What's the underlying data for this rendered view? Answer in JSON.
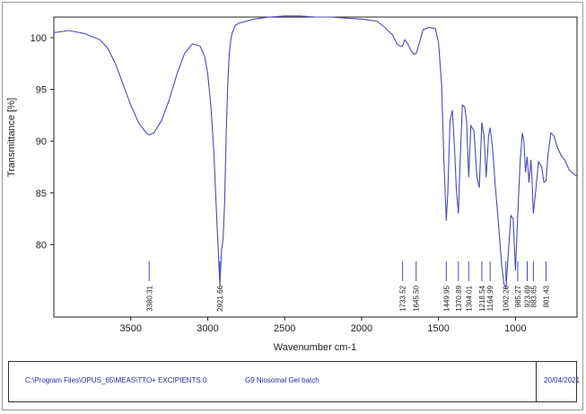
{
  "chart_data": {
    "type": "line",
    "ylabel": "Transmittance [%]",
    "xlabel": "Wavenumber cm-1",
    "xlim": [
      4000,
      600
    ],
    "ylim": [
      73,
      102
    ],
    "x_ticks": [
      "3500",
      "3000",
      "2500",
      "2000",
      "1500",
      "1000"
    ],
    "x_tick_values": [
      3500,
      3000,
      2500,
      2000,
      1500,
      1000
    ],
    "y_ticks": [
      "100",
      "95",
      "90",
      "85",
      "80"
    ],
    "y_tick_values": [
      100,
      95,
      90,
      85,
      80
    ],
    "line_color": "#4b4bb5",
    "series": [
      {
        "x": [
          4000,
          3900,
          3800,
          3700,
          3650,
          3600,
          3550,
          3500,
          3450,
          3400,
          3380,
          3350,
          3300,
          3250,
          3200,
          3150,
          3100,
          3050,
          3020,
          3000,
          2980,
          2960,
          2950,
          2940,
          2930,
          2921,
          2910,
          2900,
          2890,
          2880,
          2870,
          2860,
          2850,
          2840,
          2820,
          2800,
          2700,
          2600,
          2500,
          2400,
          2300,
          2200,
          2100,
          2000,
          1900,
          1850,
          1800,
          1770,
          1750,
          1733,
          1720,
          1700,
          1680,
          1660,
          1645,
          1630,
          1600,
          1560,
          1520,
          1500,
          1480,
          1465,
          1450,
          1440,
          1425,
          1410,
          1395,
          1385,
          1371,
          1360,
          1345,
          1330,
          1318,
          1304,
          1290,
          1270,
          1250,
          1235,
          1219,
          1205,
          1190,
          1175,
          1165,
          1150,
          1130,
          1110,
          1090,
          1075,
          1062,
          1045,
          1030,
          1015,
          1000,
          985,
          970,
          955,
          945,
          935,
          924,
          912,
          900,
          893,
          884,
          870,
          850,
          830,
          815,
          801,
          790,
          770,
          750,
          730,
          700,
          680,
          650,
          620,
          600
        ],
        "y": [
          100.5,
          100.7,
          100.4,
          99.8,
          99.0,
          97.5,
          95.5,
          93.5,
          91.8,
          90.8,
          90.6,
          90.8,
          92.0,
          94.0,
          96.5,
          98.5,
          99.4,
          99.2,
          98.2,
          96.5,
          93.5,
          89.0,
          85.5,
          82.0,
          79.0,
          76.0,
          79.5,
          80.5,
          84.0,
          90.5,
          95.5,
          98.5,
          99.8,
          100.5,
          101.2,
          101.4,
          101.8,
          102.0,
          102.1,
          102.1,
          102.0,
          102.0,
          101.9,
          101.8,
          101.6,
          101.0,
          100.3,
          99.4,
          99.2,
          99.2,
          99.8,
          99.4,
          98.8,
          98.4,
          98.5,
          99.2,
          100.8,
          101.0,
          100.9,
          99.5,
          95.5,
          88.0,
          82.3,
          85.0,
          92.0,
          93.0,
          89.0,
          85.5,
          83.0,
          88.0,
          93.5,
          93.3,
          92.0,
          86.5,
          91.5,
          91.0,
          86.5,
          85.5,
          91.8,
          90.5,
          86.5,
          90.5,
          91.3,
          89.5,
          85.5,
          82.0,
          78.0,
          76.2,
          75.8,
          79.5,
          82.8,
          82.5,
          77.5,
          83.0,
          88.0,
          90.8,
          90.0,
          87.0,
          88.5,
          86.0,
          88.2,
          86.5,
          83.0,
          85.0,
          88.0,
          87.5,
          86.0,
          86.2,
          88.5,
          90.8,
          90.5,
          89.5,
          88.5,
          88.2,
          87.2,
          86.8,
          86.6
        ]
      }
    ],
    "peak_labels": [
      "3380.31",
      "2921.66",
      "1733.52",
      "1645.50",
      "1449.95",
      "1370.89",
      "1304.01",
      "1218.54",
      "1164.99",
      "1062.26",
      "985.27",
      "923.69",
      "883.65",
      "801.43"
    ],
    "peak_positions": [
      3380.31,
      2921.66,
      1733.52,
      1645.5,
      1449.95,
      1370.89,
      1304.01,
      1218.54,
      1164.99,
      1062.26,
      985.27,
      923.69,
      883.65,
      801.43
    ],
    "grid": false,
    "legend": "none"
  },
  "footer": {
    "file_path": "C:\\Program Files\\OPUS_65\\MEAS\\TTO+ EXCIPIENTS.0",
    "sample_name": "G9 Niosomal Gel batch",
    "date": "20/04/2021"
  }
}
